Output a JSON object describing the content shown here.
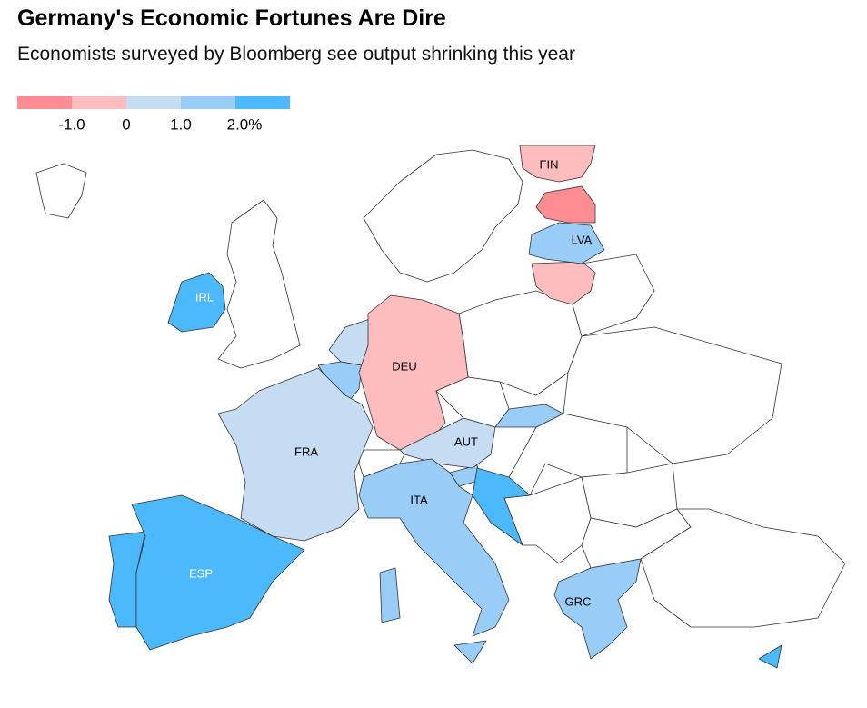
{
  "header": {
    "title": "Germany's Economic Fortunes Are Dire",
    "subtitle": "Economists surveyed by Bloomberg see output shrinking this year"
  },
  "legend": {
    "colors": [
      "#fd8d93",
      "#fdbcbe",
      "#c6dcf2",
      "#99ccf7",
      "#4bb9fb"
    ],
    "labels": [
      "-1.0",
      "0",
      "1.0",
      "2.0%"
    ]
  },
  "map": {
    "regions": [
      {
        "label": "FIN",
        "color": "#fdbcbe"
      },
      {
        "label": "LVA",
        "color": "#99ccf7"
      },
      {
        "label": "IRL",
        "color": "#4bb9fb"
      },
      {
        "label": "DEU",
        "color": "#fdbcbe"
      },
      {
        "label": "FRA",
        "color": "#c6dcf2"
      },
      {
        "label": "AUT",
        "color": "#c6dcf2"
      },
      {
        "label": "ITA",
        "color": "#99ccf7"
      },
      {
        "label": "ESP",
        "color": "#4bb9fb"
      },
      {
        "label": "GRC",
        "color": "#99ccf7"
      }
    ]
  }
}
